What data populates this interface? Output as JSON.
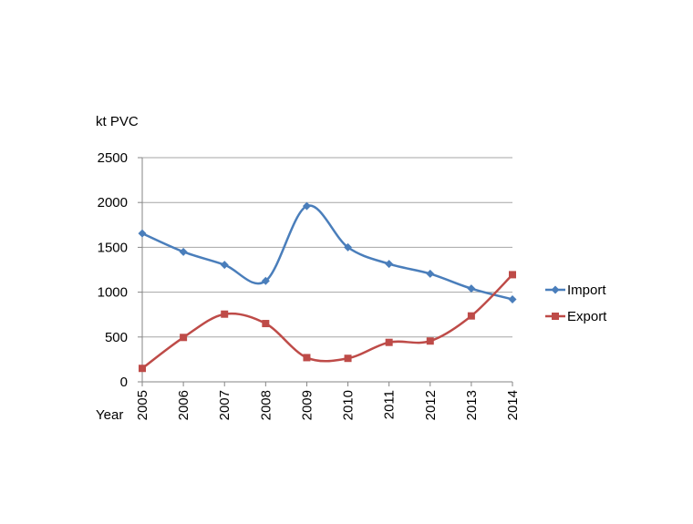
{
  "chart_data": {
    "type": "line",
    "smoothed": true,
    "ylabel": "kt PVC",
    "xlabel": "Year",
    "ylim": [
      0,
      2500
    ],
    "yticks": [
      0,
      500,
      1000,
      1500,
      2000,
      2500
    ],
    "grid": true,
    "legend": "right",
    "categories": [
      "2005",
      "2006",
      "2007",
      "2008",
      "2009",
      "2010",
      "2011",
      "2012",
      "2013",
      "2014"
    ],
    "series": [
      {
        "name": "Import",
        "color": "#4a7ebb",
        "marker": "diamond",
        "values": [
          1655,
          1450,
          1305,
          1125,
          1960,
          1500,
          1315,
          1205,
          1040,
          920
        ]
      },
      {
        "name": "Export",
        "color": "#be4b48",
        "marker": "square",
        "values": [
          150,
          495,
          755,
          650,
          270,
          262,
          440,
          455,
          735,
          1195
        ]
      }
    ]
  }
}
